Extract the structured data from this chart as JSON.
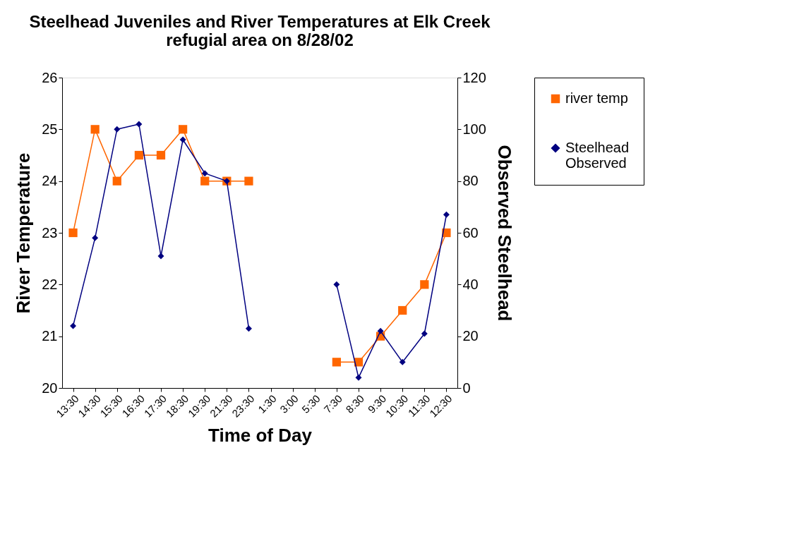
{
  "chart_data": {
    "type": "line",
    "title": "Steelhead Juveniles and River Temperatures at Elk Creek refugial area on 8/28/02",
    "xlabel": "Time of Day",
    "ylabel": "River Temperature",
    "y2label": "Observed Steelhead",
    "categories": [
      "13:30",
      "14:30",
      "15:30",
      "16:30",
      "17:30",
      "18:30",
      "19:30",
      "21:30",
      "23:30",
      "1:30",
      "3:00",
      "5:30",
      "7:30",
      "8:30",
      "9:30",
      "10:30",
      "11:30",
      "12:30"
    ],
    "series": [
      {
        "name": "river temp",
        "color": "#ff6600",
        "marker": "square",
        "values": [
          23,
          25,
          24,
          24.5,
          24.5,
          25,
          24,
          24,
          24,
          null,
          null,
          null,
          20.5,
          20.5,
          21,
          21.5,
          22,
          23
        ]
      },
      {
        "name": "Steelhead Observed",
        "color": "#000080",
        "marker": "diamond",
        "axis": "y2",
        "values": [
          24,
          58,
          100,
          102,
          51,
          96,
          83,
          80,
          23,
          null,
          null,
          null,
          40,
          4,
          22,
          10,
          21,
          67
        ]
      }
    ],
    "ylim": [
      20,
      26
    ],
    "yticks": [
      20,
      21,
      22,
      23,
      24,
      25,
      26
    ],
    "y2lim": [
      0,
      120
    ],
    "y2ticks": [
      0,
      20,
      40,
      60,
      80,
      100,
      120
    ],
    "grid": false,
    "legend": "right",
    "line_style": "solid"
  }
}
